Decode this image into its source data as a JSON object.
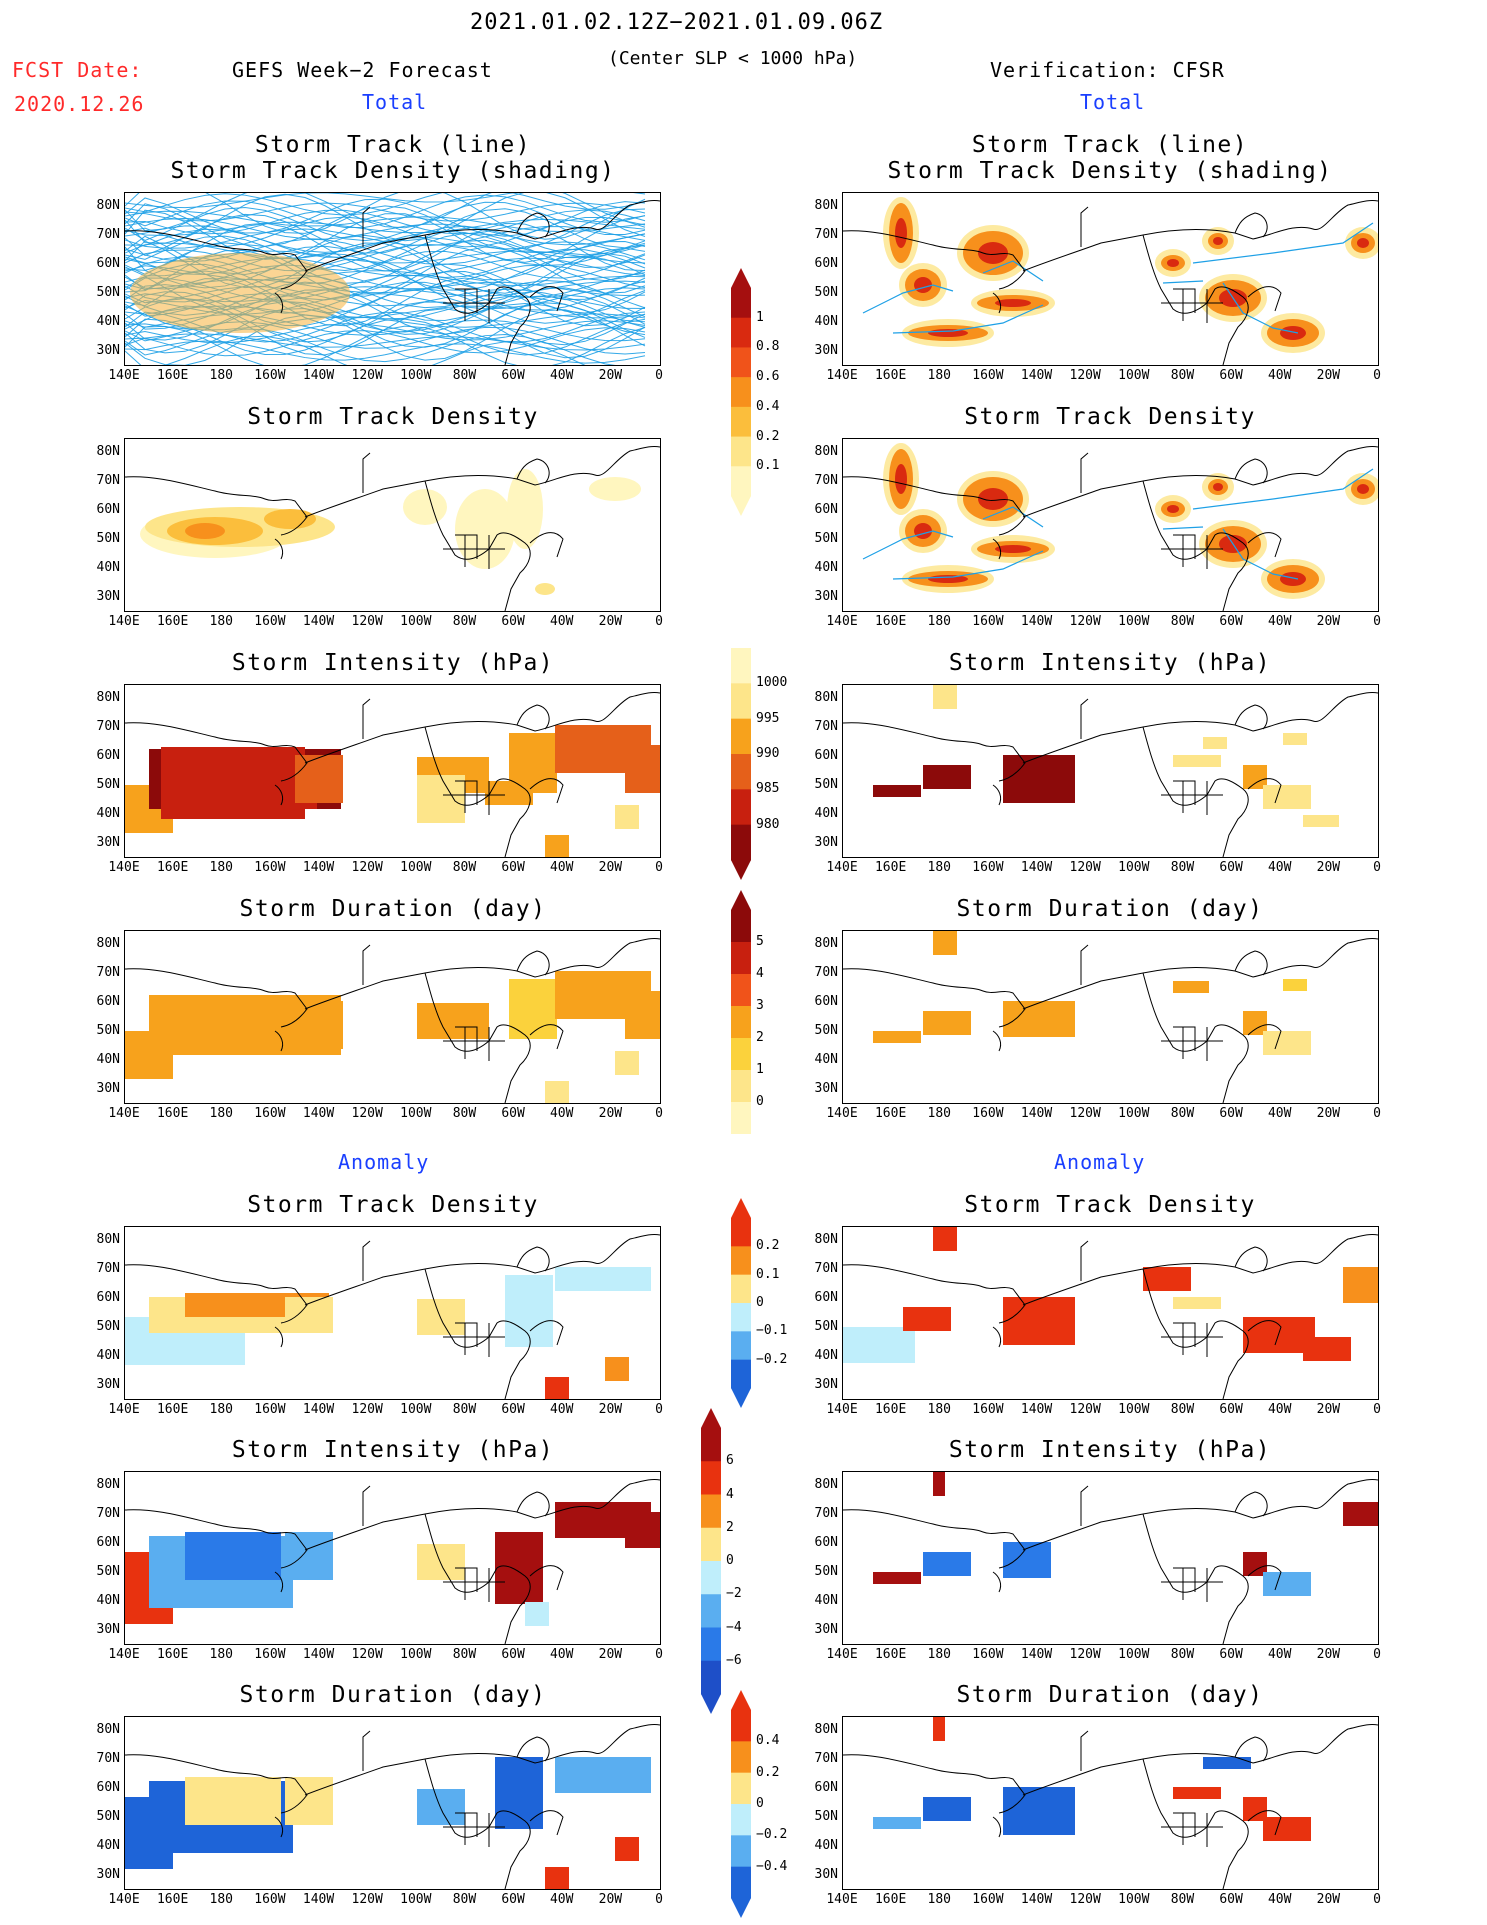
{
  "header": {
    "date_range": "2021.01.02.12Z−2021.01.09.06Z",
    "criteria": "(Center SLP < 1000 hPa)",
    "fcst_label": "FCST Date:",
    "fcst_date": "2020.12.26",
    "left_title": "GEFS Week−2 Forecast",
    "right_title": "Verification: CFSR",
    "total": "Total",
    "anomaly": "Anomaly"
  },
  "axes": {
    "lat_labels": [
      "80N",
      "70N",
      "60N",
      "50N",
      "40N",
      "30N"
    ],
    "lon_labels": [
      "140E",
      "160E",
      "180",
      "160W",
      "140W",
      "120W",
      "100W",
      "80W",
      "60W",
      "40W",
      "20W",
      "0"
    ]
  },
  "panel_titles": {
    "track_line": "Storm Track (line)",
    "track_shading": "Storm Track Density (shading)",
    "density": "Storm Track Density",
    "intensity": "Storm Intensity (hPa)",
    "duration": "Storm Duration (day)"
  },
  "colorbars": {
    "density_total": {
      "labels": [
        "1",
        "0.8",
        "0.6",
        "0.4",
        "0.2",
        "0.1"
      ],
      "colors": [
        "#a50f0f",
        "#d92a10",
        "#f0531a",
        "#f7901c",
        "#fbbe3c",
        "#fde58a",
        "#fff6bf"
      ]
    },
    "intensity_total": {
      "labels": [
        "1000",
        "995",
        "990",
        "985",
        "980"
      ],
      "colors": [
        "#fff6bf",
        "#fde58a",
        "#f7a21c",
        "#e5601a",
        "#c8200f",
        "#8c0a0a"
      ]
    },
    "duration_total": {
      "labels": [
        "5",
        "4",
        "3",
        "2",
        "1",
        "0"
      ],
      "colors": [
        "#8c0a0a",
        "#c8200f",
        "#f0531a",
        "#f7a21c",
        "#fbd23c",
        "#fde58a",
        "#fff6bf"
      ]
    },
    "density_anom": {
      "labels": [
        "0.2",
        "0.1",
        "0",
        "−0.1",
        "−0.2"
      ],
      "colors": [
        "#e8320f",
        "#f7901c",
        "#fde58a",
        "#bfeefb",
        "#5aaef0",
        "#1e64d8"
      ]
    },
    "intensity_anom": {
      "labels": [
        "6",
        "4",
        "2",
        "0",
        "−2",
        "−4",
        "−6"
      ],
      "colors": [
        "#a50f0f",
        "#e8320f",
        "#f7901c",
        "#fde58a",
        "#bfeefb",
        "#5aaef0",
        "#2a7ae8",
        "#1e4fc8"
      ]
    },
    "duration_anom": {
      "labels": [
        "0.4",
        "0.2",
        "0",
        "−0.2",
        "−0.4"
      ],
      "colors": [
        "#e8320f",
        "#f7901c",
        "#fde58a",
        "#bfeefb",
        "#5aaef0",
        "#1e64d8"
      ]
    }
  },
  "palette": {
    "track_line": "#1ea0e6",
    "coast": "#000000"
  }
}
